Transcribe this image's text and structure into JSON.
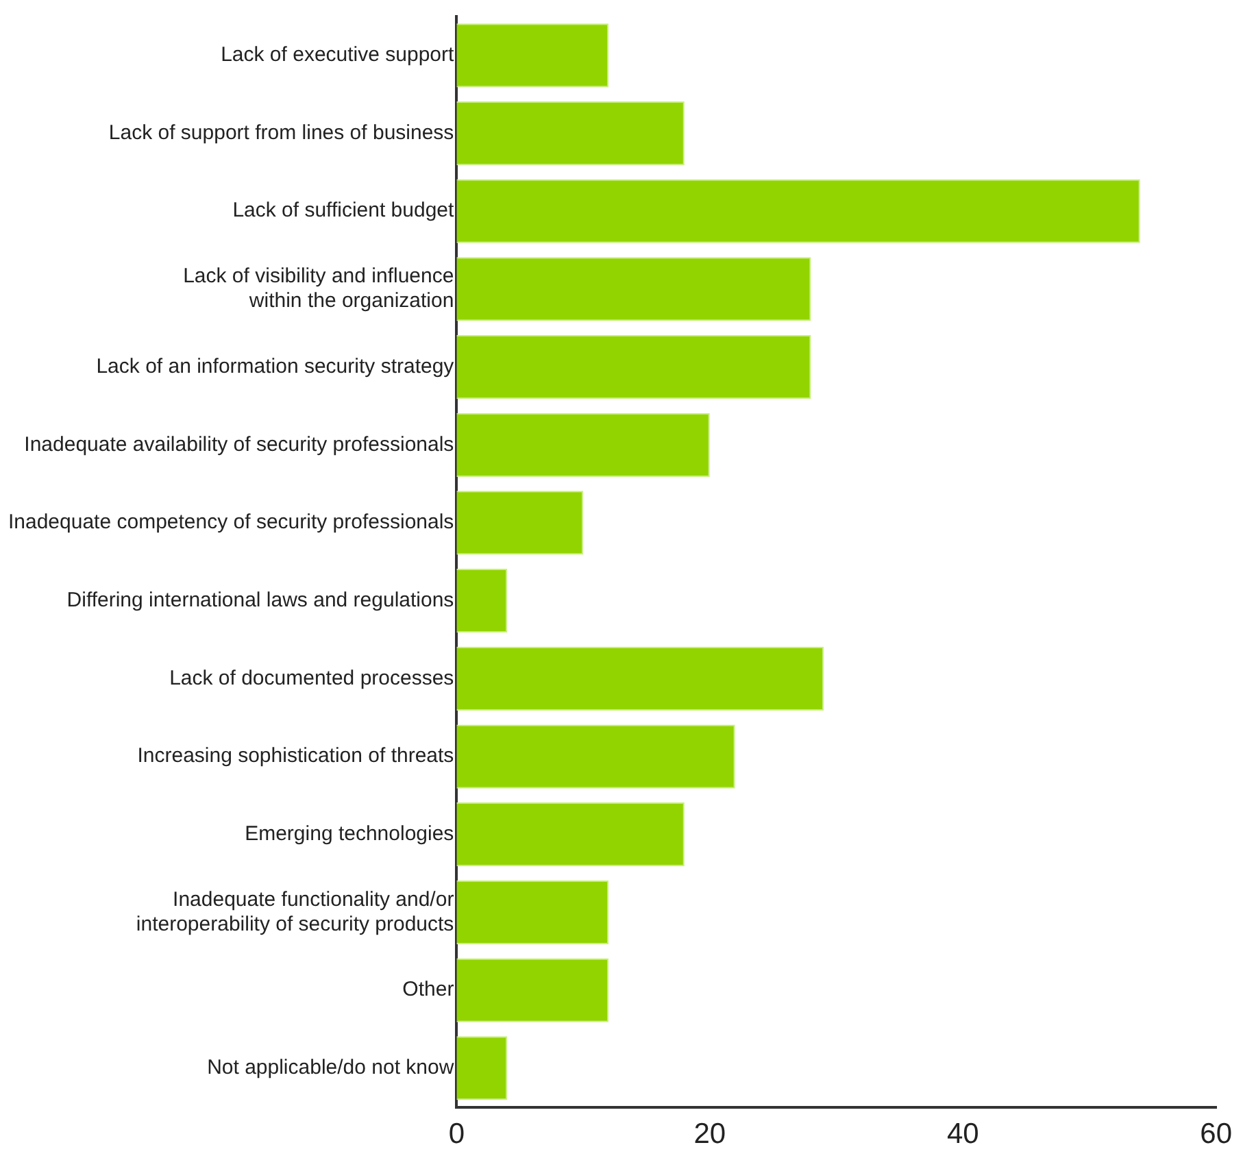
{
  "chart_data": {
    "type": "bar",
    "orientation": "horizontal",
    "categories": [
      "Lack of executive support",
      "Lack of support from lines of business",
      "Lack of sufficient budget",
      "Lack of visibility and influence\nwithin the organization",
      "Lack of an information security strategy",
      "Inadequate availability of security professionals",
      "Inadequate competency of security professionals",
      "Differing international laws and regulations",
      "Lack of documented processes",
      "Increasing sophistication of threats",
      "Emerging technologies",
      "Inadequate functionality and/or\ninteroperability of security products",
      "Other",
      "Not applicable/do not know"
    ],
    "values": [
      12,
      18,
      54,
      28,
      28,
      20,
      10,
      4,
      29,
      22,
      18,
      12,
      12,
      4
    ],
    "color": "#92d400",
    "xlim": [
      0,
      60
    ],
    "xticks": [
      0,
      20,
      40,
      60
    ],
    "grid": false,
    "legend": false
  }
}
